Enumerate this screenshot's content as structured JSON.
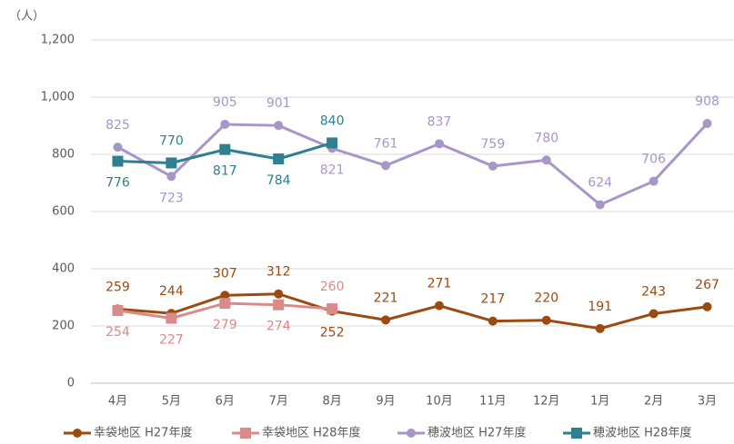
{
  "chart_data": {
    "type": "line",
    "y_unit": "（人）",
    "categories": [
      "4月",
      "5月",
      "6月",
      "7月",
      "8月",
      "9月",
      "10月",
      "11月",
      "12月",
      "1月",
      "2月",
      "3月"
    ],
    "series": [
      {
        "name": "幸袋地区 H27年度",
        "color": "#9c4a0f",
        "marker": "circle",
        "values": [
          259,
          244,
          307,
          312,
          252,
          221,
          271,
          217,
          220,
          191,
          243,
          267
        ]
      },
      {
        "name": "幸袋地区 H28年度",
        "color": "#db8a8a",
        "marker": "square",
        "values": [
          254,
          227,
          279,
          274,
          260,
          null,
          null,
          null,
          null,
          null,
          null,
          null
        ]
      },
      {
        "name": "穂波地区 H27年度",
        "color": "#a896c8",
        "marker": "circle",
        "values": [
          825,
          723,
          905,
          901,
          821,
          761,
          837,
          759,
          780,
          624,
          706,
          908
        ]
      },
      {
        "name": "穂波地区 H28年度",
        "color": "#2e7f8f",
        "marker": "square",
        "values": [
          776,
          770,
          817,
          784,
          840,
          null,
          null,
          null,
          null,
          null,
          null,
          null
        ]
      }
    ],
    "ylim": [
      0,
      1200
    ],
    "yticks": [
      0,
      200,
      400,
      600,
      800,
      {
        "value": 1000,
        "label": "1,000"
      },
      {
        "value": 1200,
        "label": "1,200"
      }
    ],
    "grid": true,
    "legend": "bottom"
  }
}
